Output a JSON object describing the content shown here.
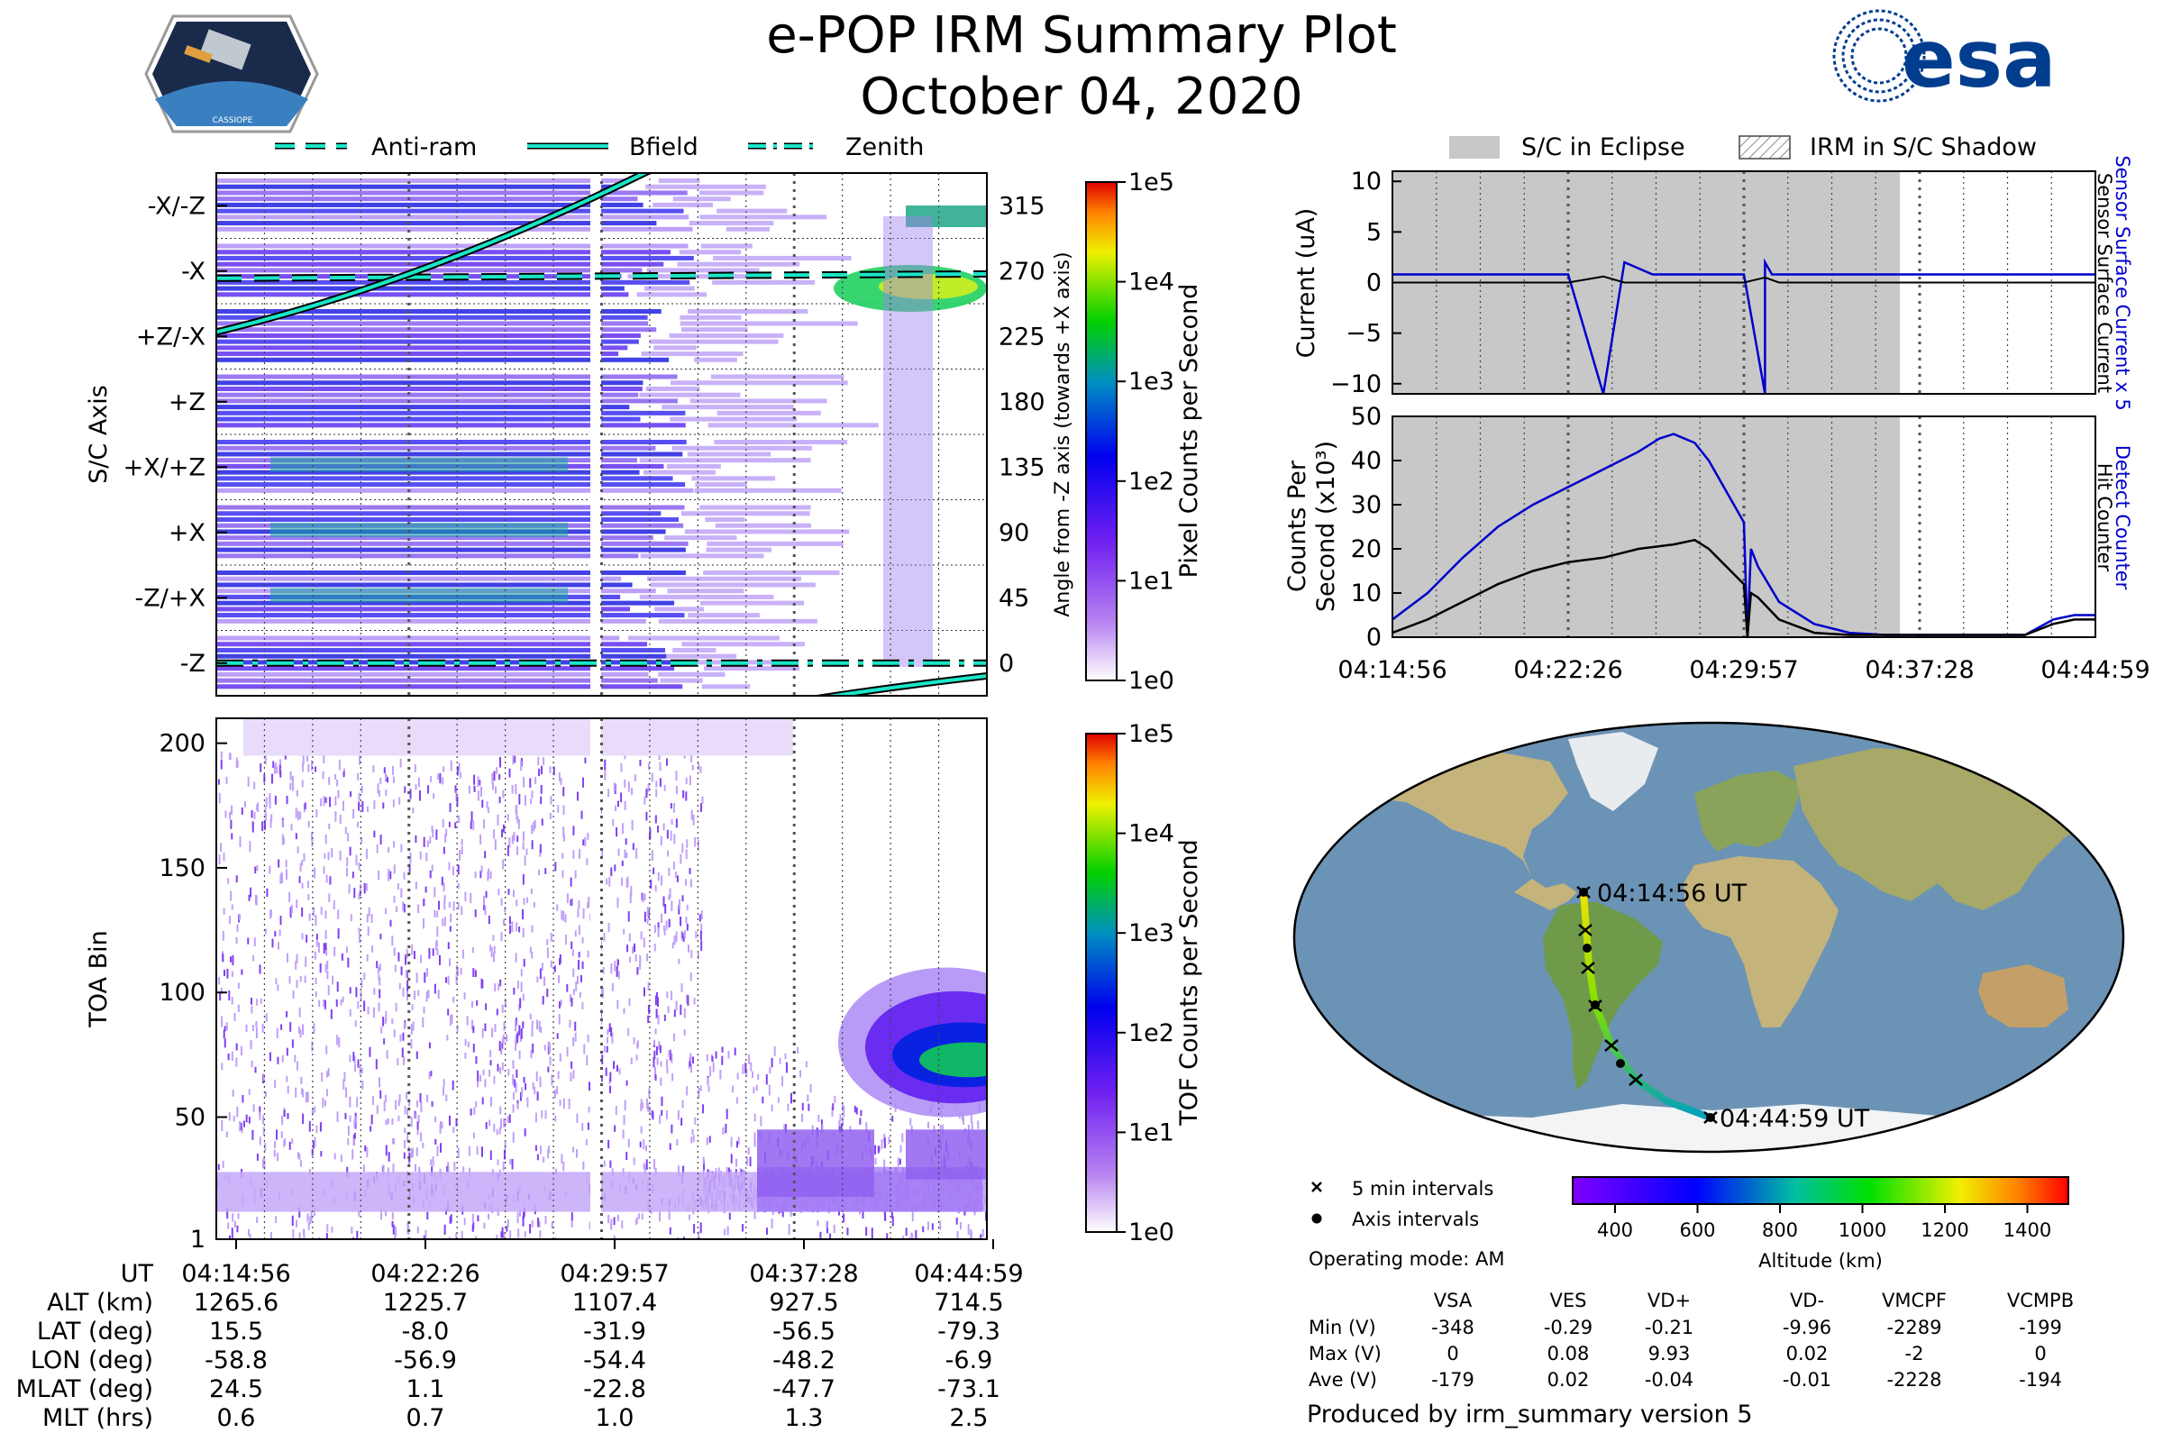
{
  "header": {
    "title": "e-POP IRM Summary Plot",
    "date": "October 04, 2020",
    "logo_left_text": "CASSIOPE",
    "logo_right_text": "esa"
  },
  "colors": {
    "eclipse": "#c8c8c8",
    "cyan": "#19e6c8",
    "blue_line": "#0000cc",
    "black_line": "#000000",
    "ocean": "#6b93b5",
    "land": "#c4b37a",
    "ice": "#f2f4f6"
  },
  "top_legend": {
    "items": [
      {
        "label": "Anti-ram",
        "style": "dashed"
      },
      {
        "label": "Bfield",
        "style": "solid"
      },
      {
        "label": "Zenith",
        "style": "dashdot"
      }
    ]
  },
  "right_legend": {
    "eclipse": "S/C in Eclipse",
    "shadow": "IRM in S/C Shadow"
  },
  "chart_data": [
    {
      "id": "sc_axis_spectrogram",
      "type": "heatmap",
      "ylabel": "S/C Axis",
      "y_categories": [
        "-X/-Z",
        "-X",
        "+Z/-X",
        "+Z",
        "+X/+Z",
        "+X",
        "-Z/+X",
        "-Z"
      ],
      "y2label": "Angle from -Z axis (towards +X axis)",
      "y2_ticks": [
        315,
        270,
        225,
        180,
        135,
        90,
        45,
        0
      ],
      "x_ticks": [
        "04:14:56",
        "04:22:26",
        "04:29:57",
        "04:37:28",
        "04:44:59"
      ],
      "colorbar": {
        "label": "Pixel Counts per Second",
        "ticks": [
          "1e5",
          "1e4",
          "1e3",
          "1e2",
          "1e1",
          "1e0"
        ]
      },
      "lines": [
        {
          "name": "Anti-ram",
          "angle_start": 265,
          "angle_end": 268
        },
        {
          "name": "Bfield",
          "angle_start": 228,
          "angle_end": 345
        },
        {
          "name": "Zenith",
          "angle_start": 0,
          "angle_end": 0
        }
      ]
    },
    {
      "id": "tof_spectrogram",
      "type": "heatmap",
      "ylabel": "TOA Bin",
      "y_ticks": [
        1,
        50,
        100,
        150,
        200
      ],
      "ylim": [
        1,
        210
      ],
      "x_ticks": [
        "04:14:56",
        "04:22:26",
        "04:29:57",
        "04:37:28",
        "04:44:59"
      ],
      "colorbar": {
        "label": "TOF Counts per Second",
        "ticks": [
          "1e5",
          "1e4",
          "1e3",
          "1e2",
          "1e1",
          "1e0"
        ]
      }
    },
    {
      "id": "current_plot",
      "type": "line",
      "ylabel": "Current (uA)",
      "ylim": [
        -11,
        11
      ],
      "y_ticks": [
        10,
        5,
        0,
        -5,
        -10
      ],
      "series": [
        {
          "name": "Sensor Surface Current x 5",
          "color": "#0000cc",
          "t": [
            0,
            0.25,
            0.3,
            0.33,
            0.37,
            0.4,
            0.44,
            0.48,
            0.5,
            0.53,
            0.53,
            0.54,
            0.55,
            0.57,
            0.6,
            0.65,
            0.7,
            0.75,
            0.8,
            0.85,
            0.9,
            0.95,
            1.0
          ],
          "v": [
            0.8,
            0.8,
            -11,
            2,
            0.8,
            0.8,
            0.8,
            0.8,
            0.8,
            -11,
            2,
            0.8,
            0.8,
            0.8,
            0.8,
            0.8,
            0.8,
            0.8,
            0.8,
            0.8,
            0.8,
            0.8,
            0.8
          ]
        }
      ]
    },
    {
      "id": "counts_plot",
      "type": "line",
      "ylabel": "Counts Per Second (x10³)",
      "ylim": [
        0,
        50
      ],
      "y_ticks": [
        0,
        10,
        20,
        30,
        40,
        50
      ],
      "x_ticks": [
        "04:14:56",
        "04:22:26",
        "04:29:57",
        "04:37:28",
        "04:44:59"
      ],
      "series": [
        {
          "name": "Detect Counter",
          "color": "#0000cc",
          "t": [
            0,
            0.05,
            0.1,
            0.15,
            0.2,
            0.25,
            0.3,
            0.35,
            0.38,
            0.4,
            0.43,
            0.45,
            0.5,
            0.505,
            0.51,
            0.52,
            0.55,
            0.6,
            0.65,
            0.7,
            0.75,
            0.8,
            0.85,
            0.9,
            0.94,
            0.97,
            1.0
          ],
          "v": [
            4,
            10,
            18,
            25,
            30,
            34,
            38,
            42,
            45,
            46,
            44,
            40,
            26,
            0,
            20,
            16,
            8,
            3,
            1,
            0.5,
            0.5,
            0.5,
            0.5,
            0.5,
            4,
            5,
            5
          ]
        },
        {
          "name": "Hit Counter",
          "color": "#000000",
          "t": [
            0,
            0.05,
            0.1,
            0.15,
            0.2,
            0.25,
            0.3,
            0.35,
            0.4,
            0.43,
            0.45,
            0.5,
            0.505,
            0.51,
            0.52,
            0.55,
            0.6,
            0.65,
            0.7,
            0.8,
            0.9,
            0.94,
            0.97,
            1.0
          ],
          "v": [
            1,
            4,
            8,
            12,
            15,
            17,
            18,
            20,
            21,
            22,
            20,
            12,
            0,
            10,
            9,
            4,
            1,
            0.5,
            0.5,
            0.5,
            0.5,
            3,
            4,
            4
          ]
        }
      ]
    }
  ],
  "current_side_labels": {
    "blue": "Sensor Surface Current x 5",
    "black": "Sensor Surface Current"
  },
  "counts_side_labels": {
    "blue": "Detect Counter",
    "black": "Hit Counter"
  },
  "counts_ylabel_line1": "Counts Per",
  "counts_ylabel_line2": "Second (x10³)",
  "map": {
    "start_label": "04:14:56 UT",
    "end_label": "04:44:59 UT",
    "legend_cross": "5 min intervals",
    "legend_dot": "Axis intervals",
    "operating_mode": "Operating mode: AM",
    "altitude_label": "Altitude (km)",
    "altitude_ticks": [
      "400",
      "600",
      "800",
      "1000",
      "1200",
      "1400"
    ]
  },
  "ephemeris": {
    "row_labels": [
      "UT",
      "ALT (km)",
      "LAT (deg)",
      "LON (deg)",
      "MLAT (deg)",
      "MLT (hrs)"
    ],
    "columns": [
      [
        "04:14:56",
        "1265.6",
        "15.5",
        "-58.8",
        "24.5",
        "0.6"
      ],
      [
        "04:22:26",
        "1225.7",
        "-8.0",
        "-56.9",
        "1.1",
        "0.7"
      ],
      [
        "04:29:57",
        "1107.4",
        "-31.9",
        "-54.4",
        "-22.8",
        "1.0"
      ],
      [
        "04:37:28",
        "927.5",
        "-56.5",
        "-48.2",
        "-47.7",
        "1.3"
      ],
      [
        "04:44:59",
        "714.5",
        "-79.3",
        "-6.9",
        "-73.1",
        "2.5"
      ]
    ]
  },
  "voltage_table": {
    "headers": [
      "VSA",
      "VES",
      "VD+",
      "VD-",
      "VMCPF",
      "VCMPB"
    ],
    "rows": [
      {
        "label": "Min (V)",
        "values": [
          "-348",
          "-0.29",
          "-0.21",
          "-9.96",
          "-2289",
          "-199"
        ]
      },
      {
        "label": "Max (V)",
        "values": [
          "0",
          "0.08",
          "9.93",
          "0.02",
          "-2",
          "0"
        ]
      },
      {
        "label": "Ave (V)",
        "values": [
          "-179",
          "0.02",
          "-0.04",
          "-0.01",
          "-2228",
          "-194"
        ]
      }
    ]
  },
  "footer": "Produced by irm_summary version 5"
}
